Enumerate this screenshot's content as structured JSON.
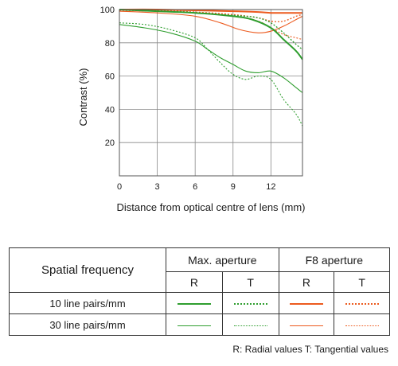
{
  "chart_data": {
    "type": "line",
    "title": "",
    "xlabel": "Distance from optical centre of lens (mm)",
    "ylabel": "Contrast (%)",
    "xlim": [
      0,
      14.5
    ],
    "ylim": [
      0,
      100
    ],
    "xticks": [
      0,
      3,
      6,
      9,
      12
    ],
    "yticks": [
      20,
      40,
      60,
      80,
      100
    ],
    "grid": true,
    "series": [
      {
        "color": "#ec5a1e",
        "dash": false,
        "width": 2,
        "points": [
          [
            0,
            100
          ],
          [
            3,
            100
          ],
          [
            6,
            99.5
          ],
          [
            9,
            99
          ],
          [
            11,
            98.5
          ],
          [
            12,
            98
          ],
          [
            13,
            98
          ],
          [
            14.5,
            98
          ]
        ]
      },
      {
        "color": "#ec5a1e",
        "dash": true,
        "width": 1.3,
        "points": [
          [
            0,
            100
          ],
          [
            3,
            99.5
          ],
          [
            6,
            98.5
          ],
          [
            9,
            97
          ],
          [
            11,
            95
          ],
          [
            12,
            93
          ],
          [
            13,
            93
          ],
          [
            14,
            96
          ],
          [
            14.5,
            97
          ]
        ]
      },
      {
        "color": "#ec5a1e",
        "dash": false,
        "width": 1.1,
        "points": [
          [
            0,
            99
          ],
          [
            3,
            98
          ],
          [
            6,
            96
          ],
          [
            8,
            92
          ],
          [
            9.5,
            88
          ],
          [
            11,
            86
          ],
          [
            12,
            87
          ],
          [
            13,
            90
          ],
          [
            14,
            94
          ],
          [
            14.5,
            96
          ]
        ]
      },
      {
        "color": "#ec5a1e",
        "dash": true,
        "width": 1.1,
        "points": [
          [
            0,
            99.5
          ],
          [
            3,
            99
          ],
          [
            6,
            98
          ],
          [
            9,
            96
          ],
          [
            11,
            93
          ],
          [
            12,
            89
          ],
          [
            13,
            85
          ],
          [
            14,
            83
          ],
          [
            14.5,
            82
          ]
        ]
      },
      {
        "color": "#2f9e2f",
        "dash": false,
        "width": 2,
        "points": [
          [
            0,
            100
          ],
          [
            3,
            99
          ],
          [
            6,
            98
          ],
          [
            9,
            96
          ],
          [
            10.5,
            94
          ],
          [
            12,
            89
          ],
          [
            13,
            82
          ],
          [
            14,
            75
          ],
          [
            14.5,
            70
          ]
        ]
      },
      {
        "color": "#2f9e2f",
        "dash": true,
        "width": 1.3,
        "points": [
          [
            0,
            100
          ],
          [
            3,
            99
          ],
          [
            6,
            98
          ],
          [
            8,
            97
          ],
          [
            10,
            96
          ],
          [
            11,
            95
          ],
          [
            12,
            92
          ],
          [
            13,
            86
          ],
          [
            14,
            79
          ],
          [
            14.5,
            76
          ]
        ]
      },
      {
        "color": "#2f9e2f",
        "dash": false,
        "width": 1.1,
        "points": [
          [
            0,
            91
          ],
          [
            2,
            89
          ],
          [
            4,
            86
          ],
          [
            6,
            81
          ],
          [
            7,
            76
          ],
          [
            8,
            71
          ],
          [
            9,
            67
          ],
          [
            10,
            63
          ],
          [
            11,
            62
          ],
          [
            12,
            63
          ],
          [
            13,
            59
          ],
          [
            14,
            53
          ],
          [
            14.5,
            50
          ]
        ]
      },
      {
        "color": "#2f9e2f",
        "dash": true,
        "width": 1.1,
        "points": [
          [
            0,
            92
          ],
          [
            2,
            91
          ],
          [
            4,
            88
          ],
          [
            6,
            83
          ],
          [
            7,
            76
          ],
          [
            8,
            68
          ],
          [
            9,
            61
          ],
          [
            10,
            58
          ],
          [
            11,
            60
          ],
          [
            12,
            58
          ],
          [
            13,
            46
          ],
          [
            14,
            37
          ],
          [
            14.5,
            30
          ]
        ]
      }
    ]
  },
  "legend": {
    "header_spatial": "Spatial frequency",
    "header_max": "Max. aperture",
    "header_f8": "F8 aperture",
    "r": "R",
    "t": "T",
    "row10": "10 line pairs/mm",
    "row30": "30 line pairs/mm",
    "green": "#2f9e2f",
    "orange": "#ec5a1e"
  },
  "footnote": "R: Radial values  T: Tangential values"
}
